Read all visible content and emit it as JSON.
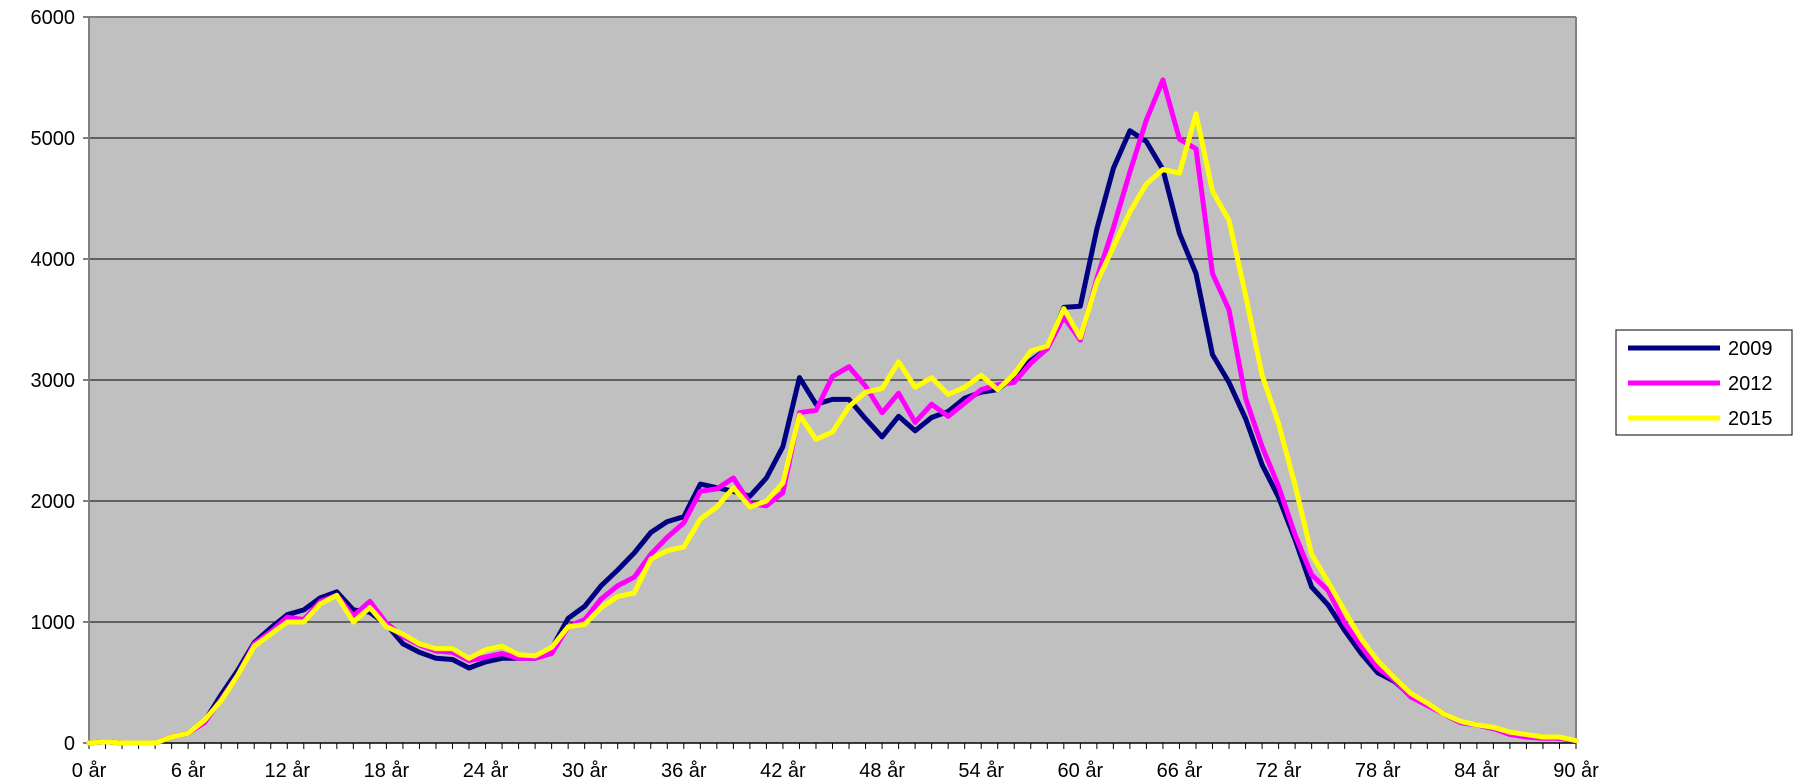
{
  "chart_data": {
    "type": "line",
    "title": "",
    "xlabel": "",
    "ylabel": "",
    "xlim": [
      0,
      90
    ],
    "ylim": [
      0,
      6000
    ],
    "y_ticks": [
      0,
      1000,
      2000,
      3000,
      4000,
      5000,
      6000
    ],
    "x_tick_labels": [
      "0 år",
      "6 år",
      "12 år",
      "18 år",
      "24 år",
      "30 år",
      "36 år",
      "42 år",
      "48 år",
      "54 år",
      "60 år",
      "66 år",
      "72 år",
      "78 år",
      "84 år",
      "90 år"
    ],
    "x_tick_values": [
      0,
      6,
      12,
      18,
      24,
      30,
      36,
      42,
      48,
      54,
      60,
      66,
      72,
      78,
      84,
      90
    ],
    "grid": "horizontal",
    "legend_position": "right",
    "plot_background": "#c0c0c0",
    "series": [
      {
        "name": "2009",
        "color": "#000080",
        "values": [
          0,
          10,
          0,
          0,
          0,
          50,
          80,
          180,
          400,
          600,
          830,
          950,
          1060,
          1100,
          1200,
          1250,
          1100,
          1080,
          980,
          820,
          750,
          700,
          690,
          620,
          670,
          700,
          700,
          700,
          780,
          1030,
          1130,
          1300,
          1430,
          1570,
          1740,
          1830,
          1870,
          2140,
          2110,
          2080,
          2040,
          2190,
          2450,
          3020,
          2800,
          2840,
          2840,
          2680,
          2530,
          2700,
          2580,
          2690,
          2740,
          2850,
          2900,
          2920,
          3030,
          3160,
          3260,
          3600,
          3610,
          4250,
          4750,
          5060,
          4970,
          4740,
          4210,
          3880,
          3210,
          2980,
          2680,
          2300,
          2030,
          1680,
          1290,
          1140,
          930,
          740,
          580,
          510,
          390,
          320,
          240,
          170,
          150,
          120,
          80,
          60,
          50,
          40,
          20
        ]
      },
      {
        "name": "2012",
        "color": "#ff00ff",
        "values": [
          0,
          10,
          0,
          0,
          0,
          50,
          80,
          170,
          360,
          560,
          820,
          920,
          1040,
          1020,
          1170,
          1220,
          1050,
          1170,
          990,
          880,
          810,
          760,
          750,
          680,
          710,
          740,
          700,
          700,
          740,
          960,
          1020,
          1190,
          1300,
          1370,
          1560,
          1700,
          1820,
          2080,
          2100,
          2190,
          1980,
          1960,
          2070,
          2730,
          2750,
          3030,
          3110,
          2950,
          2730,
          2890,
          2650,
          2800,
          2700,
          2810,
          2920,
          2960,
          2980,
          3140,
          3260,
          3520,
          3330,
          3840,
          4260,
          4720,
          5150,
          5480,
          4990,
          4910,
          3880,
          3580,
          2850,
          2450,
          2120,
          1720,
          1390,
          1260,
          990,
          800,
          620,
          520,
          380,
          310,
          240,
          170,
          150,
          120,
          70,
          50,
          40,
          40,
          20
        ]
      },
      {
        "name": "2015",
        "color": "#ffff00",
        "values": [
          0,
          10,
          0,
          0,
          0,
          50,
          80,
          190,
          350,
          560,
          800,
          900,
          1000,
          1000,
          1150,
          1220,
          1000,
          1120,
          960,
          900,
          820,
          780,
          780,
          700,
          770,
          800,
          730,
          720,
          790,
          960,
          980,
          1120,
          1210,
          1240,
          1520,
          1590,
          1620,
          1850,
          1950,
          2110,
          1950,
          2000,
          2150,
          2710,
          2510,
          2570,
          2780,
          2900,
          2930,
          3150,
          2940,
          3020,
          2880,
          2940,
          3040,
          2920,
          3050,
          3240,
          3280,
          3590,
          3350,
          3810,
          4100,
          4390,
          4620,
          4740,
          4710,
          5200,
          4560,
          4320,
          3700,
          3040,
          2640,
          2130,
          1560,
          1330,
          1090,
          860,
          680,
          540,
          410,
          330,
          240,
          180,
          150,
          130,
          90,
          70,
          50,
          50,
          20
        ]
      }
    ]
  }
}
